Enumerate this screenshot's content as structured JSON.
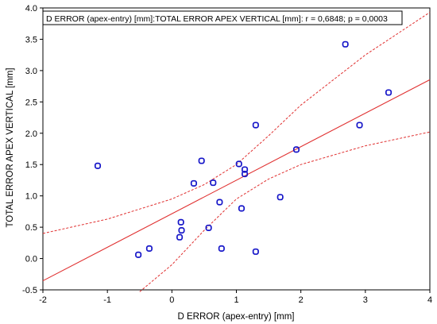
{
  "chart_data": {
    "type": "scatter",
    "title": "",
    "legend_text": "D ERROR (apex-entry) [mm]:TOTAL ERROR APEX VERTICAL [mm]:   r = 0,6848; p = 0,0003",
    "legend_position": "top-left",
    "xlabel": "D ERROR (apex-entry) [mm]",
    "ylabel": "TOTAL ERROR APEX VERTICAL [mm]",
    "xlim": [
      -2,
      4
    ],
    "ylim": [
      -0.5,
      4.0
    ],
    "xticks": [
      -2,
      -1,
      0,
      1,
      2,
      3,
      4
    ],
    "yticks": [
      -0.5,
      0.0,
      0.5,
      1.0,
      1.5,
      2.0,
      2.5,
      3.0,
      3.5,
      4.0
    ],
    "xtick_labels": [
      "-2",
      "-1",
      "0",
      "1",
      "2",
      "3",
      "4"
    ],
    "ytick_labels": [
      "-0.5",
      "0.0",
      "0.5",
      "1.0",
      "1.5",
      "2.0",
      "2.5",
      "3.0",
      "3.5",
      "4.0"
    ],
    "grid": false,
    "colors": {
      "points": "#1515c8",
      "regression": "#e03030",
      "frame": "#000000"
    },
    "points": [
      {
        "x": -1.15,
        "y": 1.48
      },
      {
        "x": -0.52,
        "y": 0.06
      },
      {
        "x": -0.35,
        "y": 0.16
      },
      {
        "x": 0.12,
        "y": 0.34
      },
      {
        "x": 0.14,
        "y": 0.58
      },
      {
        "x": 0.15,
        "y": 0.45
      },
      {
        "x": 0.34,
        "y": 1.2
      },
      {
        "x": 0.46,
        "y": 1.56
      },
      {
        "x": 0.57,
        "y": 0.49
      },
      {
        "x": 0.64,
        "y": 1.21
      },
      {
        "x": 0.74,
        "y": 0.9
      },
      {
        "x": 0.77,
        "y": 0.16
      },
      {
        "x": 1.04,
        "y": 1.51
      },
      {
        "x": 1.08,
        "y": 0.8
      },
      {
        "x": 1.13,
        "y": 1.42
      },
      {
        "x": 1.13,
        "y": 1.35
      },
      {
        "x": 1.3,
        "y": 2.13
      },
      {
        "x": 1.3,
        "y": 0.11
      },
      {
        "x": 1.68,
        "y": 0.98
      },
      {
        "x": 1.93,
        "y": 1.74
      },
      {
        "x": 2.69,
        "y": 3.42
      },
      {
        "x": 2.91,
        "y": 2.13
      },
      {
        "x": 3.36,
        "y": 2.65
      }
    ],
    "regression": {
      "intercept": 0.715,
      "slope": 0.535
    },
    "confidence_upper": [
      {
        "x": -2.0,
        "y": 0.4
      },
      {
        "x": -1.0,
        "y": 0.63
      },
      {
        "x": 0.0,
        "y": 0.95
      },
      {
        "x": 0.5,
        "y": 1.18
      },
      {
        "x": 1.0,
        "y": 1.5
      },
      {
        "x": 1.5,
        "y": 1.96
      },
      {
        "x": 2.0,
        "y": 2.45
      },
      {
        "x": 3.0,
        "y": 3.25
      },
      {
        "x": 4.0,
        "y": 3.93
      }
    ],
    "confidence_lower": [
      {
        "x": -0.5,
        "y": -0.53
      },
      {
        "x": 0.0,
        "y": -0.1
      },
      {
        "x": 0.5,
        "y": 0.45
      },
      {
        "x": 1.0,
        "y": 0.95
      },
      {
        "x": 1.5,
        "y": 1.27
      },
      {
        "x": 2.0,
        "y": 1.5
      },
      {
        "x": 3.0,
        "y": 1.8
      },
      {
        "x": 4.0,
        "y": 2.02
      }
    ]
  }
}
